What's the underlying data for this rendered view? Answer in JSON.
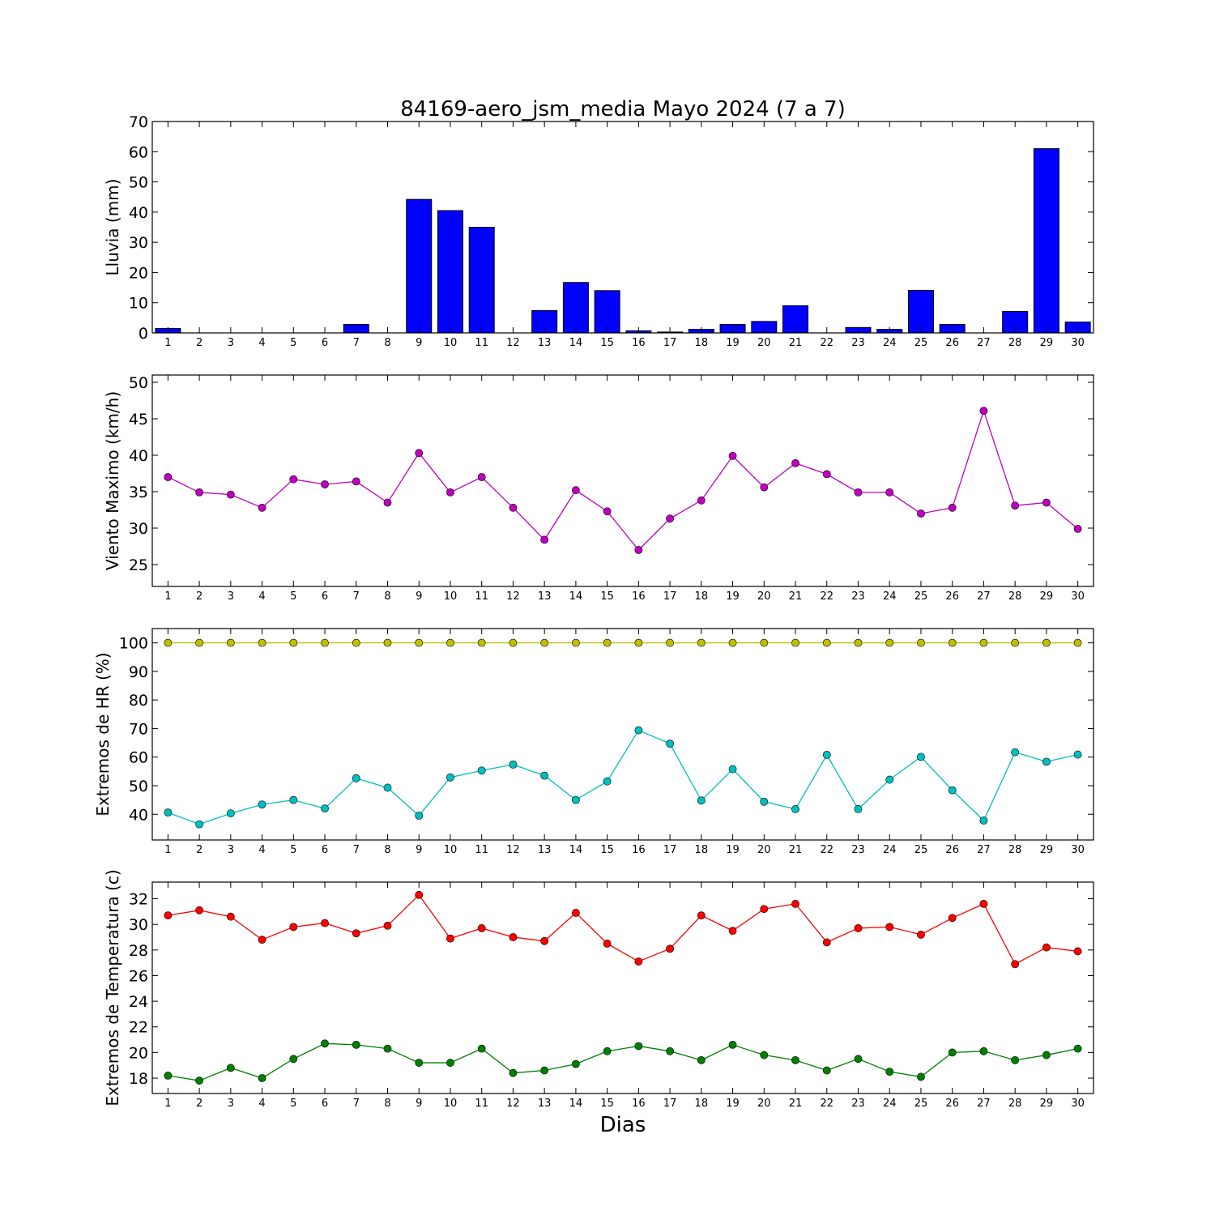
{
  "title": "84169-aero_jsm_media Mayo 2024  (7 a 7)",
  "xlabel": "Dias",
  "chart_data": [
    {
      "type": "bar",
      "ylabel": "Lluvia (mm)",
      "x": [
        1,
        2,
        3,
        4,
        5,
        6,
        7,
        8,
        9,
        10,
        11,
        12,
        13,
        14,
        15,
        16,
        17,
        18,
        19,
        20,
        21,
        22,
        23,
        24,
        25,
        26,
        27,
        28,
        29,
        30
      ],
      "ylim": [
        0,
        70
      ],
      "yticks": [
        0,
        10,
        20,
        30,
        40,
        50,
        60,
        70
      ],
      "grid": false,
      "series": [
        {
          "color": "#0000ff",
          "values": [
            1.5,
            0,
            0,
            0,
            0,
            0,
            2.8,
            0,
            44.2,
            40.5,
            35.0,
            0,
            7.4,
            16.7,
            14.0,
            0.7,
            0.3,
            1.2,
            2.8,
            3.8,
            9.0,
            0,
            1.8,
            1.2,
            14.1,
            2.8,
            0,
            7.1,
            61.0,
            3.6
          ]
        }
      ]
    },
    {
      "type": "line",
      "ylabel": "Viento Maximo (km/h)",
      "x": [
        1,
        2,
        3,
        4,
        5,
        6,
        7,
        8,
        9,
        10,
        11,
        12,
        13,
        14,
        15,
        16,
        17,
        18,
        19,
        20,
        21,
        22,
        23,
        24,
        25,
        26,
        27,
        28,
        29,
        30
      ],
      "ylim": [
        22,
        51
      ],
      "yticks": [
        25,
        30,
        35,
        40,
        45,
        50
      ],
      "grid": false,
      "series": [
        {
          "color": "#bf00bf",
          "values": [
            37.0,
            34.9,
            34.6,
            32.8,
            36.7,
            36.0,
            36.4,
            33.5,
            40.3,
            34.9,
            37.0,
            32.8,
            28.4,
            35.2,
            32.3,
            27.0,
            31.3,
            33.8,
            39.9,
            35.6,
            38.9,
            37.4,
            34.9,
            34.9,
            32.0,
            32.8,
            46.1,
            33.1,
            33.5,
            29.9
          ]
        }
      ]
    },
    {
      "type": "line",
      "ylabel": "Extremos de HR (%)",
      "x": [
        1,
        2,
        3,
        4,
        5,
        6,
        7,
        8,
        9,
        10,
        11,
        12,
        13,
        14,
        15,
        16,
        17,
        18,
        19,
        20,
        21,
        22,
        23,
        24,
        25,
        26,
        27,
        28,
        29,
        30
      ],
      "ylim": [
        31,
        105
      ],
      "yticks": [
        40,
        50,
        60,
        70,
        80,
        90,
        100
      ],
      "grid": false,
      "series": [
        {
          "color": "#bfbf00",
          "values": [
            100,
            100,
            100,
            100,
            100,
            100,
            100,
            100,
            100,
            100,
            100,
            100,
            100,
            100,
            100,
            100,
            100,
            100,
            100,
            100,
            100,
            100,
            100,
            100,
            100,
            100,
            100,
            100,
            100,
            100
          ]
        },
        {
          "color": "#00bfbf",
          "values": [
            40.6,
            36.5,
            40.3,
            43.4,
            45.0,
            42.0,
            52.6,
            49.3,
            39.5,
            52.9,
            55.3,
            57.4,
            53.5,
            45.0,
            51.5,
            69.4,
            64.7,
            44.8,
            55.8,
            44.4,
            41.8,
            60.8,
            41.8,
            52.1,
            60.1,
            48.4,
            37.8,
            61.7,
            58.4,
            60.9
          ]
        }
      ]
    },
    {
      "type": "line",
      "ylabel": "Extremos de Temperatura (c)",
      "x": [
        1,
        2,
        3,
        4,
        5,
        6,
        7,
        8,
        9,
        10,
        11,
        12,
        13,
        14,
        15,
        16,
        17,
        18,
        19,
        20,
        21,
        22,
        23,
        24,
        25,
        26,
        27,
        28,
        29,
        30
      ],
      "ylim": [
        16.8,
        33.3
      ],
      "yticks": [
        18,
        20,
        22,
        24,
        26,
        28,
        30,
        32
      ],
      "grid": false,
      "series": [
        {
          "color": "#ff0000",
          "values": [
            30.7,
            31.1,
            30.6,
            28.8,
            29.8,
            30.1,
            29.3,
            29.9,
            32.3,
            28.9,
            29.7,
            29.0,
            28.7,
            30.9,
            28.5,
            27.1,
            28.1,
            30.7,
            29.5,
            31.2,
            31.6,
            28.6,
            29.7,
            29.8,
            29.2,
            30.5,
            31.6,
            26.9,
            28.2,
            27.9
          ]
        },
        {
          "color": "#008000",
          "values": [
            18.2,
            17.8,
            18.8,
            18.0,
            19.5,
            20.7,
            20.6,
            20.3,
            19.2,
            19.2,
            20.3,
            18.4,
            18.6,
            19.1,
            20.1,
            20.5,
            20.1,
            19.4,
            20.6,
            19.8,
            19.4,
            18.6,
            19.5,
            18.5,
            18.1,
            20.0,
            20.1,
            19.4,
            19.8,
            20.3
          ]
        }
      ]
    }
  ]
}
